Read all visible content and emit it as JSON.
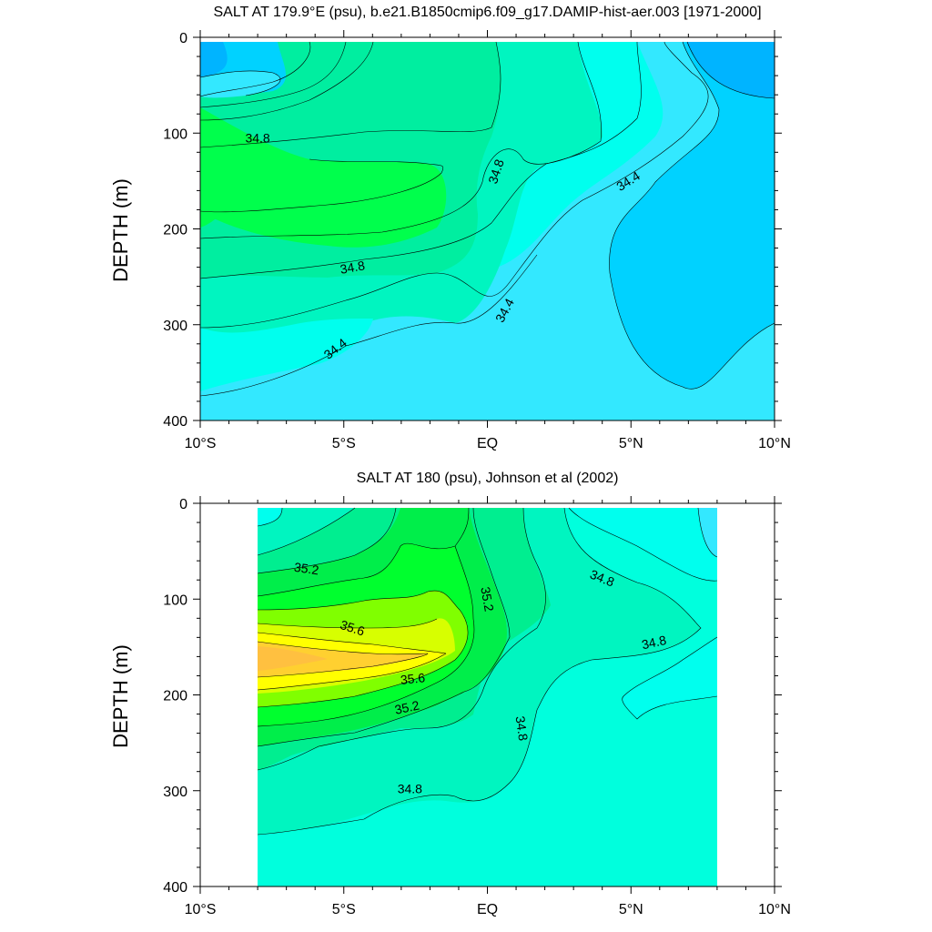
{
  "chart_data": [
    {
      "type": "contour",
      "title": "SALT AT 179.9°E (psu), b.e21.B1850cmip6.f09_g17.DAMIP-hist-aer.003 [1971-2000]",
      "xlabel": "",
      "ylabel": "DEPTH (m)",
      "x_ticks": [
        "10°S",
        "5°S",
        "EQ",
        "5°N",
        "10°N"
      ],
      "xlim": [
        -10,
        10
      ],
      "y_ticks": [
        "0",
        "100",
        "200",
        "300",
        "400"
      ],
      "ylim": [
        400,
        0
      ],
      "contour_labels": [
        {
          "text": "34.8",
          "lat": -8.0,
          "depth": 105,
          "angle": 0
        },
        {
          "text": "34.8",
          "lat": 0.3,
          "depth": 140,
          "angle": -72
        },
        {
          "text": "34.4",
          "lat": 4.9,
          "depth": 150,
          "angle": -32
        },
        {
          "text": "34.8",
          "lat": -4.7,
          "depth": 240,
          "angle": -10
        },
        {
          "text": "34.4",
          "lat": 0.6,
          "depth": 285,
          "angle": -62
        },
        {
          "text": "34.4",
          "lat": -5.3,
          "depth": 325,
          "angle": -38
        }
      ],
      "fill_colors": [
        "#00b4ff",
        "#00d2ff",
        "#33e8ff",
        "#00ffee",
        "#00f5c0",
        "#00eea0",
        "#00ff4c"
      ]
    },
    {
      "type": "contour",
      "title": "SALT AT 180 (psu), Johnson et al (2002)",
      "xlabel": "",
      "ylabel": "DEPTH (m)",
      "x_ticks": [
        "10°S",
        "5°S",
        "EQ",
        "5°N",
        "10°N"
      ],
      "xlim": [
        -10,
        10
      ],
      "y_ticks": [
        "0",
        "100",
        "200",
        "300",
        "400"
      ],
      "ylim": [
        400,
        0
      ],
      "data_extent_lat": [
        -8,
        8
      ],
      "contour_labels": [
        {
          "text": "35.2",
          "lat": -6.3,
          "depth": 68,
          "angle": 8
        },
        {
          "text": "35.2",
          "lat": 0.0,
          "depth": 100,
          "angle": 80
        },
        {
          "text": "34.8",
          "lat": 4.0,
          "depth": 78,
          "angle": 22
        },
        {
          "text": "35.6",
          "lat": -4.7,
          "depth": 130,
          "angle": 18
        },
        {
          "text": "34.8",
          "lat": 5.8,
          "depth": 145,
          "angle": -12
        },
        {
          "text": "35.6",
          "lat": -2.6,
          "depth": 183,
          "angle": -6
        },
        {
          "text": "35.2",
          "lat": -2.8,
          "depth": 213,
          "angle": -12
        },
        {
          "text": "34.8",
          "lat": 1.2,
          "depth": 235,
          "angle": 82
        },
        {
          "text": "34.8",
          "lat": -2.7,
          "depth": 298,
          "angle": 0
        }
      ],
      "fill_colors": [
        "#00ffee",
        "#00f5c0",
        "#00eea0",
        "#00ee5a",
        "#00ff2e",
        "#7dff00",
        "#d7ff00",
        "#ffff00",
        "#ffd030",
        "#ffc040",
        "#33e8ff"
      ]
    }
  ]
}
